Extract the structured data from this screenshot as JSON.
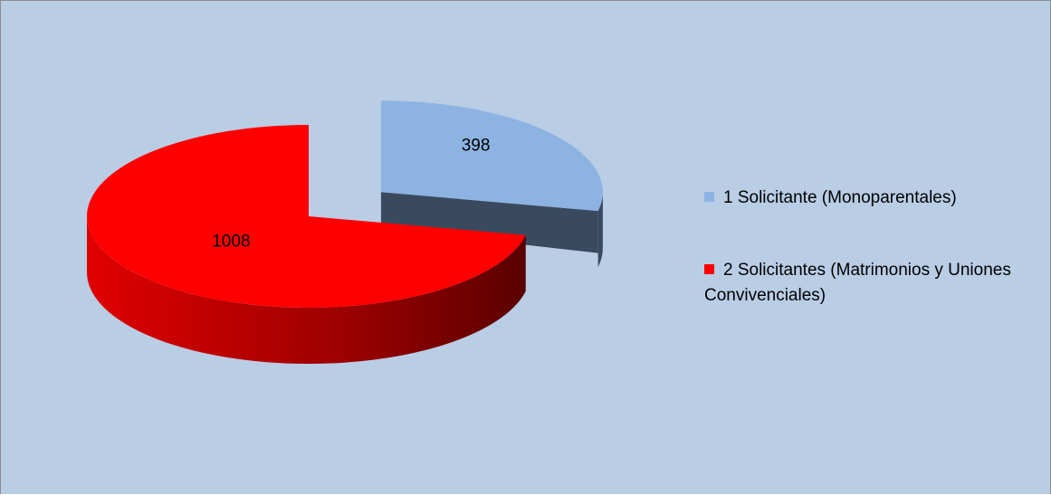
{
  "chart_data": {
    "type": "pie",
    "categories": [
      "1 Solicitante (Monoparentales)",
      "2 Solicitantes (Matrimonios y Uniones Convivenciales)"
    ],
    "values": [
      398,
      1008
    ],
    "colors": [
      "#8db3e2",
      "#ff0000"
    ],
    "legend": "right"
  }
}
